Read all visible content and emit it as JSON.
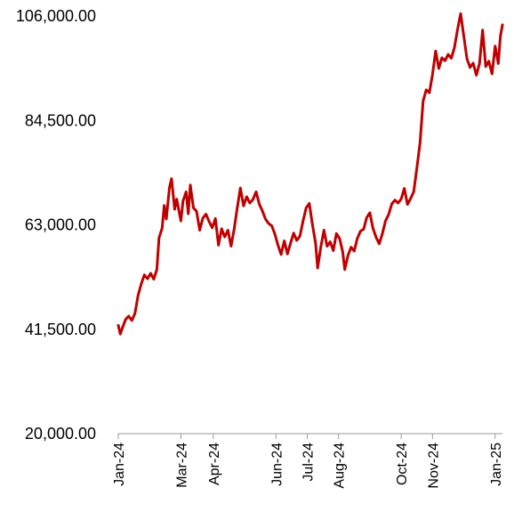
{
  "chart_data": {
    "type": "line",
    "title": "",
    "xlabel": "",
    "ylabel": "",
    "line_color": "#c00000",
    "grid": false,
    "legend": "none",
    "ylim": [
      20000,
      106000
    ],
    "y_ticks": [
      {
        "value": 20000,
        "label": "20,000.00"
      },
      {
        "value": 41500,
        "label": "41,500.00"
      },
      {
        "value": 63000,
        "label": "63,000.00"
      },
      {
        "value": 84500,
        "label": "84,500.00"
      },
      {
        "value": 106000,
        "label": "106,000.00"
      }
    ],
    "x_ticks": [
      {
        "date": "2024-01-01",
        "label": "Jan-24"
      },
      {
        "date": "2024-03-01",
        "label": "Mar-24"
      },
      {
        "date": "2024-04-01",
        "label": "Apr-24"
      },
      {
        "date": "2024-05-31",
        "label": "Jun-24"
      },
      {
        "date": "2024-06-30",
        "label": "Jul-24"
      },
      {
        "date": "2024-07-30",
        "label": "Aug-24"
      },
      {
        "date": "2024-09-28",
        "label": "Oct-24"
      },
      {
        "date": "2024-10-28",
        "label": "Nov-24"
      },
      {
        "date": "2024-12-27",
        "label": "Jan-25"
      }
    ],
    "xlim": [
      "2024-01-01",
      "2025-01-03"
    ],
    "series": [
      {
        "name": "",
        "points": [
          [
            "2024-01-01",
            42300
          ],
          [
            "2024-01-03",
            40500
          ],
          [
            "2024-01-05",
            41800
          ],
          [
            "2024-01-08",
            43500
          ],
          [
            "2024-01-11",
            44200
          ],
          [
            "2024-01-14",
            43300
          ],
          [
            "2024-01-17",
            44800
          ],
          [
            "2024-01-20",
            48500
          ],
          [
            "2024-01-23",
            50800
          ],
          [
            "2024-01-26",
            52700
          ],
          [
            "2024-01-29",
            51900
          ],
          [
            "2024-02-01",
            53000
          ],
          [
            "2024-02-04",
            51800
          ],
          [
            "2024-02-07",
            53800
          ],
          [
            "2024-02-09",
            60300
          ],
          [
            "2024-02-12",
            62300
          ],
          [
            "2024-02-14",
            67000
          ],
          [
            "2024-02-16",
            64200
          ],
          [
            "2024-02-19",
            70600
          ],
          [
            "2024-02-21",
            72500
          ],
          [
            "2024-02-24",
            66200
          ],
          [
            "2024-02-26",
            68300
          ],
          [
            "2024-03-01",
            63800
          ],
          [
            "2024-03-03",
            67900
          ],
          [
            "2024-03-06",
            69800
          ],
          [
            "2024-03-08",
            65300
          ],
          [
            "2024-03-10",
            71200
          ],
          [
            "2024-03-13",
            66500
          ],
          [
            "2024-03-16",
            65800
          ],
          [
            "2024-03-19",
            61900
          ],
          [
            "2024-03-22",
            64400
          ],
          [
            "2024-03-25",
            65200
          ],
          [
            "2024-03-28",
            63700
          ],
          [
            "2024-03-31",
            62400
          ],
          [
            "2024-04-03",
            64300
          ],
          [
            "2024-04-06",
            58800
          ],
          [
            "2024-04-09",
            62200
          ],
          [
            "2024-04-12",
            60500
          ],
          [
            "2024-04-15",
            61900
          ],
          [
            "2024-04-18",
            58600
          ],
          [
            "2024-04-21",
            62100
          ],
          [
            "2024-04-24",
            66500
          ],
          [
            "2024-04-27",
            70600
          ],
          [
            "2024-04-30",
            66900
          ],
          [
            "2024-05-03",
            68800
          ],
          [
            "2024-05-06",
            67500
          ],
          [
            "2024-05-09",
            68200
          ],
          [
            "2024-05-12",
            69800
          ],
          [
            "2024-05-15",
            67300
          ],
          [
            "2024-05-18",
            65900
          ],
          [
            "2024-05-21",
            64200
          ],
          [
            "2024-05-24",
            63300
          ],
          [
            "2024-05-27",
            62800
          ],
          [
            "2024-05-30",
            61100
          ],
          [
            "2024-06-02",
            58800
          ],
          [
            "2024-06-05",
            56900
          ],
          [
            "2024-06-08",
            59700
          ],
          [
            "2024-06-11",
            57000
          ],
          [
            "2024-06-14",
            59200
          ],
          [
            "2024-06-17",
            61300
          ],
          [
            "2024-06-20",
            59800
          ],
          [
            "2024-06-23",
            60700
          ],
          [
            "2024-06-26",
            63800
          ],
          [
            "2024-06-29",
            66500
          ],
          [
            "2024-07-02",
            67400
          ],
          [
            "2024-07-05",
            63100
          ],
          [
            "2024-07-08",
            59200
          ],
          [
            "2024-07-10",
            54100
          ],
          [
            "2024-07-13",
            58400
          ],
          [
            "2024-07-16",
            61900
          ],
          [
            "2024-07-19",
            58600
          ],
          [
            "2024-07-22",
            59500
          ],
          [
            "2024-07-25",
            57700
          ],
          [
            "2024-07-28",
            61200
          ],
          [
            "2024-07-31",
            60200
          ],
          [
            "2024-08-03",
            57400
          ],
          [
            "2024-08-05",
            53800
          ],
          [
            "2024-08-08",
            56700
          ],
          [
            "2024-08-11",
            58400
          ],
          [
            "2024-08-14",
            57600
          ],
          [
            "2024-08-17",
            60200
          ],
          [
            "2024-08-20",
            61700
          ],
          [
            "2024-08-23",
            62100
          ],
          [
            "2024-08-26",
            64500
          ],
          [
            "2024-08-29",
            65500
          ],
          [
            "2024-09-01",
            62300
          ],
          [
            "2024-09-04",
            60400
          ],
          [
            "2024-09-07",
            59100
          ],
          [
            "2024-09-10",
            61200
          ],
          [
            "2024-09-13",
            63800
          ],
          [
            "2024-09-16",
            65100
          ],
          [
            "2024-09-19",
            67300
          ],
          [
            "2024-09-22",
            68100
          ],
          [
            "2024-09-25",
            67500
          ],
          [
            "2024-09-28",
            68300
          ],
          [
            "2024-10-01",
            70500
          ],
          [
            "2024-10-04",
            67200
          ],
          [
            "2024-10-07",
            68400
          ],
          [
            "2024-10-10",
            69800
          ],
          [
            "2024-10-13",
            74600
          ],
          [
            "2024-10-16",
            79800
          ],
          [
            "2024-10-19",
            88500
          ],
          [
            "2024-10-22",
            90800
          ],
          [
            "2024-10-25",
            90200
          ],
          [
            "2024-10-28",
            93900
          ],
          [
            "2024-10-31",
            98800
          ],
          [
            "2024-11-03",
            95200
          ],
          [
            "2024-11-06",
            97400
          ],
          [
            "2024-11-09",
            96800
          ],
          [
            "2024-11-12",
            98100
          ],
          [
            "2024-11-15",
            97300
          ],
          [
            "2024-11-18",
            99500
          ],
          [
            "2024-11-21",
            103200
          ],
          [
            "2024-11-24",
            106500
          ],
          [
            "2024-11-27",
            101800
          ],
          [
            "2024-11-30",
            97200
          ],
          [
            "2024-12-03",
            95400
          ],
          [
            "2024-12-06",
            96300
          ],
          [
            "2024-12-09",
            93800
          ],
          [
            "2024-12-12",
            96200
          ],
          [
            "2024-12-15",
            103100
          ],
          [
            "2024-12-18",
            95600
          ],
          [
            "2024-12-21",
            96700
          ],
          [
            "2024-12-24",
            94100
          ],
          [
            "2024-12-27",
            99800
          ],
          [
            "2024-12-30",
            96200
          ],
          [
            "2025-01-01",
            101800
          ],
          [
            "2025-01-03",
            104200
          ]
        ]
      }
    ]
  }
}
